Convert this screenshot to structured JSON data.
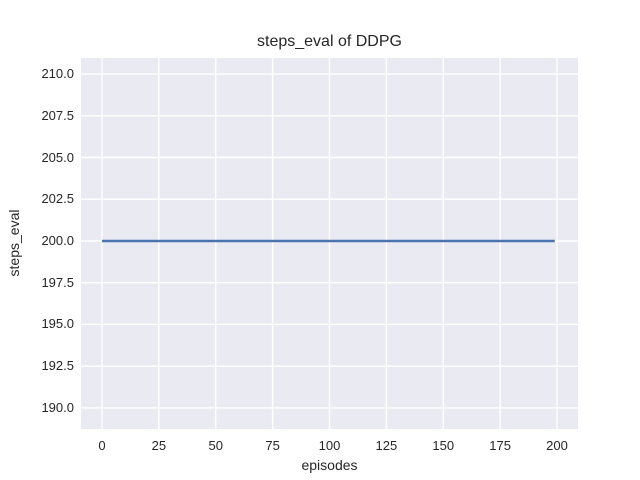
{
  "figure": {
    "background": "#ffffff",
    "plot_background": "#eaeaf2",
    "grid_color": "#ffffff",
    "text_color": "#262626",
    "style": "seaborn-darkgrid"
  },
  "chart_data": {
    "type": "line",
    "title": "steps_eval of DDPG",
    "xlabel": "episodes",
    "ylabel": "steps_eval",
    "grid": true,
    "legend": "none",
    "xlim": [
      -9.23,
      209.23
    ],
    "ylim": [
      188.74,
      210.96
    ],
    "x_ticks": [
      0,
      25,
      50,
      75,
      100,
      125,
      150,
      175,
      200
    ],
    "x_tick_labels": [
      "0",
      "25",
      "50",
      "75",
      "100",
      "125",
      "150",
      "175",
      "200"
    ],
    "y_ticks": [
      210.0,
      207.5,
      205.0,
      202.5,
      200.0,
      197.5,
      195.0,
      192.5,
      190.0
    ],
    "y_tick_labels": [
      "210.0",
      "207.5",
      "205.0",
      "202.5",
      "200.0",
      "197.5",
      "195.0",
      "192.5",
      "190.0"
    ],
    "series": [
      {
        "name": "steps_eval",
        "color": "#4c72b0",
        "x": [
          0,
          199
        ],
        "y": [
          200,
          200
        ]
      }
    ]
  }
}
